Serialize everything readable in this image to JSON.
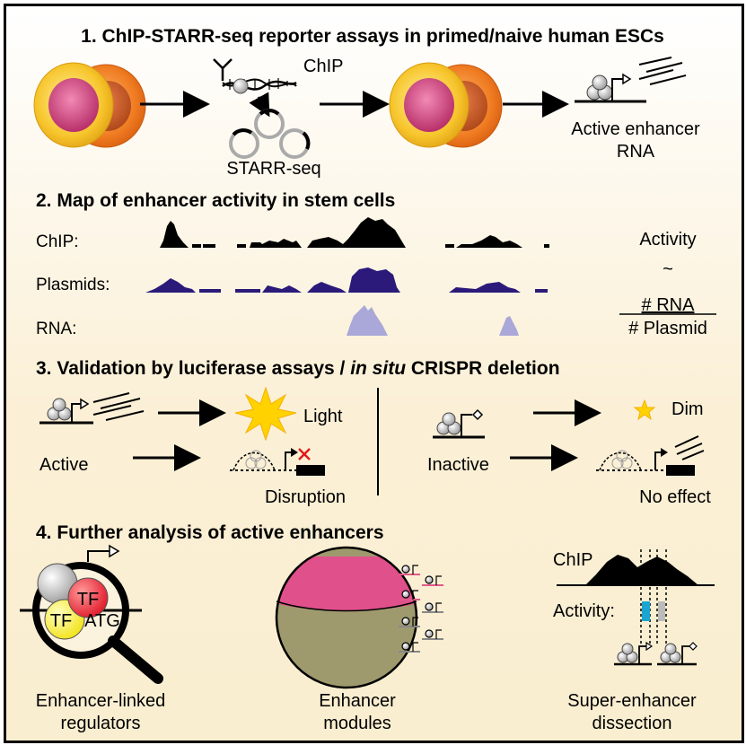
{
  "section1": {
    "title": "1. ChIP-STARR-seq reporter assays in primed/naive human ESCs",
    "chip_label": "ChIP",
    "starr_label": "STARR-seq",
    "output_line1": "Active enhancer",
    "output_line2": "RNA"
  },
  "section2": {
    "title": "2. Map of enhancer activity in stem cells",
    "track_labels": [
      "ChIP:",
      "Plasmids:",
      "RNA:"
    ],
    "activity_label": "Activity",
    "approx_symbol": "~",
    "numerator": "# RNA",
    "denominator": "# Plasmid",
    "colors": {
      "chip": "#000000",
      "plasmid": "#2b1a7a",
      "rna": "#a9a8d8"
    }
  },
  "section3": {
    "title_prefix": "3. Validation by luciferase assays / ",
    "title_italic": "in situ",
    "title_suffix": " CRISPR deletion",
    "active_label": "Active",
    "light_label": "Light",
    "disruption_label": "Disruption",
    "inactive_label": "Inactive",
    "dim_label": "Dim",
    "no_effect_label": "No effect"
  },
  "section4": {
    "title": "4. Further analysis of active enhancers",
    "tf_label": "TF",
    "atg_label": "ATG",
    "chip_label": "ChIP",
    "activity_label": "Activity:",
    "captions": [
      {
        "line1": "Enhancer-linked",
        "line2": "regulators"
      },
      {
        "line1": "Enhancer",
        "line2": "modules"
      },
      {
        "line1": "Super-enhancer",
        "line2": "dissection"
      }
    ]
  }
}
